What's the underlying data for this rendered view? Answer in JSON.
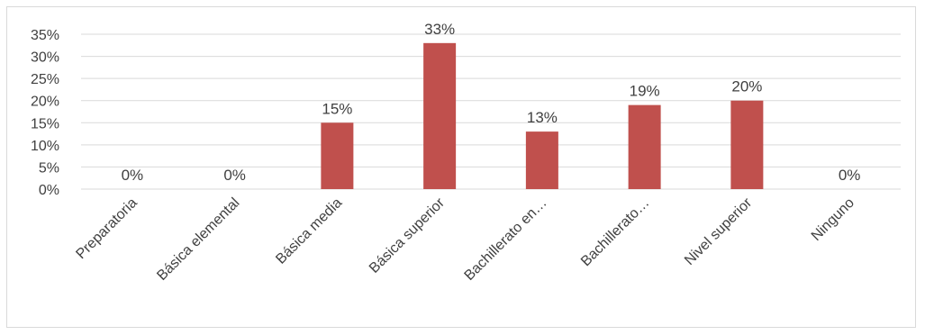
{
  "chart_data": {
    "type": "bar",
    "categories": [
      "Preparatoria",
      "Básica elemental",
      "Básica media",
      "Básica superior",
      "Bachillerato en…",
      "Bachillerato…",
      "Nivel superior",
      "Ninguno"
    ],
    "values": [
      0,
      0,
      15,
      33,
      13,
      19,
      20,
      0
    ],
    "data_labels": [
      "0%",
      "0%",
      "15%",
      "33%",
      "13%",
      "19%",
      "20%",
      "0%"
    ],
    "yticks": [
      "0%",
      "5%",
      "10%",
      "15%",
      "20%",
      "25%",
      "30%",
      "35%"
    ],
    "ylim": [
      0,
      35
    ],
    "grid": true,
    "bar_color": "#c0504d",
    "grid_color": "#d9d9d9",
    "text_color": "#404040",
    "title": "",
    "xlabel": "",
    "ylabel": ""
  }
}
